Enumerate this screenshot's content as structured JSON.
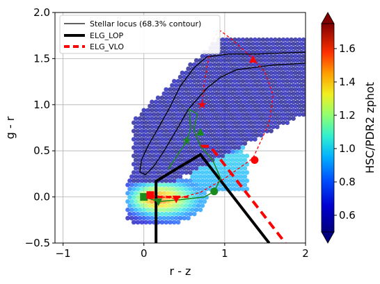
{
  "chart_data": {
    "type": "scatter",
    "xlabel": "r - z",
    "ylabel": "g - r",
    "xlim": [
      -1.1,
      2.0
    ],
    "ylim": [
      -0.5,
      2.0
    ],
    "x_ticks": [
      "−1",
      "0",
      "1",
      "2"
    ],
    "x_tick_values": [
      -1,
      0,
      1,
      2
    ],
    "y_ticks": [
      "−0.5",
      "0.0",
      "0.5",
      "1.0",
      "1.5",
      "2.0"
    ],
    "y_tick_values": [
      -0.5,
      0.0,
      0.5,
      1.0,
      1.5,
      2.0
    ],
    "grid": true,
    "legend_position": "top-left",
    "legend": [
      {
        "label": "Stellar locus (68.3% contour)",
        "style": "thin-black"
      },
      {
        "label": "ELG_LOP",
        "style": "thick-black"
      },
      {
        "label": "ELG_VLO",
        "style": "thick-red-dashed"
      }
    ],
    "colorbar": {
      "label": "HSC/PDR2 zphot",
      "range": [
        0.5,
        1.75
      ],
      "ticks": [
        "0.6",
        "0.8",
        "1.0",
        "1.2",
        "1.4",
        "1.6"
      ],
      "tick_values": [
        0.6,
        0.8,
        1.0,
        1.2,
        1.4,
        1.6
      ]
    },
    "stellar_locus_contour": [
      [
        -0.05,
        0.27
      ],
      [
        -0.03,
        0.4
      ],
      [
        0.05,
        0.55
      ],
      [
        0.18,
        0.75
      ],
      [
        0.32,
        0.97
      ],
      [
        0.45,
        1.2
      ],
      [
        0.62,
        1.4
      ],
      [
        0.78,
        1.52
      ],
      [
        1.05,
        1.55
      ],
      [
        1.4,
        1.55
      ],
      [
        2.0,
        1.57
      ],
      [
        2.0,
        1.45
      ],
      [
        1.6,
        1.43
      ],
      [
        1.15,
        1.38
      ],
      [
        0.95,
        1.3
      ],
      [
        0.78,
        1.18
      ],
      [
        0.55,
        0.95
      ],
      [
        0.4,
        0.72
      ],
      [
        0.25,
        0.5
      ],
      [
        0.12,
        0.33
      ],
      [
        0.02,
        0.24
      ],
      [
        -0.05,
        0.27
      ]
    ],
    "elg_lop_boundary": [
      [
        0.15,
        -0.5
      ],
      [
        0.15,
        0.17
      ],
      [
        0.7,
        0.46
      ],
      [
        1.55,
        -0.5
      ]
    ],
    "elg_vlo_boundary": [
      [
        0.7,
        0.55
      ],
      [
        0.82,
        0.55
      ],
      [
        1.75,
        -0.5
      ]
    ],
    "elg_vlo_lower": [
      [
        0.05,
        0.0
      ],
      [
        0.55,
        0.0
      ]
    ],
    "red_track": [
      [
        0.05,
        0.02
      ],
      [
        0.4,
        -0.02
      ],
      [
        0.7,
        0.05
      ],
      [
        1.0,
        0.2
      ],
      [
        1.35,
        0.42
      ],
      [
        1.55,
        0.8
      ],
      [
        1.6,
        1.1
      ],
      [
        1.5,
        1.35
      ],
      [
        1.35,
        1.5
      ],
      [
        1.1,
        1.7
      ],
      [
        0.95,
        1.8
      ],
      [
        0.88,
        1.75
      ],
      [
        0.82,
        1.6
      ],
      [
        0.75,
        1.25
      ],
      [
        0.72,
        1.0
      ]
    ],
    "red_markers": [
      {
        "x": 0.08,
        "y": 0.02,
        "shape": "square"
      },
      {
        "x": 0.4,
        "y": -0.02,
        "shape": "triangle-down"
      },
      {
        "x": 1.37,
        "y": 0.4,
        "shape": "circle"
      },
      {
        "x": 1.35,
        "y": 1.49,
        "shape": "triangle-up"
      },
      {
        "x": 0.72,
        "y": 1.0,
        "shape": "star"
      }
    ],
    "green_track": [
      [
        0.0,
        0.0
      ],
      [
        0.18,
        -0.05
      ],
      [
        0.45,
        -0.03
      ],
      [
        0.75,
        0.0
      ],
      [
        0.87,
        0.06
      ],
      [
        0.95,
        0.2
      ],
      [
        0.85,
        0.4
      ],
      [
        0.7,
        0.55
      ],
      [
        0.62,
        0.72
      ],
      [
        0.66,
        0.9
      ],
      [
        0.56,
        0.95
      ],
      [
        0.58,
        0.75
      ],
      [
        0.53,
        0.6
      ],
      [
        0.45,
        0.5
      ],
      [
        0.3,
        0.3
      ]
    ],
    "green_markers": [
      {
        "x": 0.0,
        "y": 0.0,
        "shape": "square"
      },
      {
        "x": 0.18,
        "y": -0.05,
        "shape": "triangle-down"
      },
      {
        "x": 0.87,
        "y": 0.06,
        "shape": "circle"
      },
      {
        "x": 0.7,
        "y": 0.7,
        "shape": "triangle-up"
      },
      {
        "x": 0.53,
        "y": 0.61,
        "shape": "star"
      }
    ]
  }
}
